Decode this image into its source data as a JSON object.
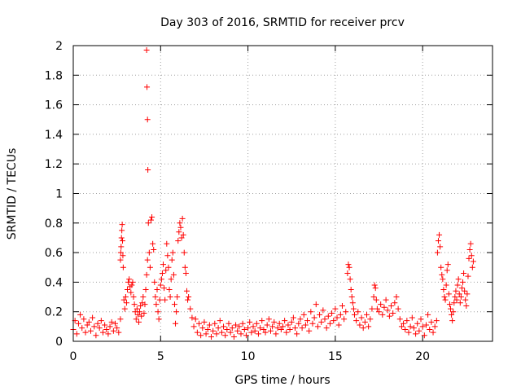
{
  "chart_data": {
    "type": "scatter",
    "title": "Day 303 of 2016, SRMTID for receiver prcv",
    "xlabel": "GPS time / hours",
    "ylabel": "SRMTID / TECUs",
    "xlim": [
      0,
      24
    ],
    "ylim": [
      0,
      2
    ],
    "x_ticks": [
      0,
      5,
      10,
      15,
      20
    ],
    "x_tick_labels": [
      "0",
      "5",
      "10",
      "15",
      "20"
    ],
    "y_ticks": [
      0,
      0.2,
      0.4,
      0.6,
      0.8,
      1,
      1.2,
      1.4,
      1.6,
      1.8,
      2
    ],
    "y_tick_labels": [
      "0",
      "0.2",
      "0.4",
      "0.6",
      "0.8",
      "1",
      "1.2",
      "1.4",
      "1.6",
      "1.8",
      "2"
    ],
    "grid": true,
    "marker": "+",
    "color": "#ff0000",
    "series": [
      {
        "name": "prcv",
        "points": [
          [
            0.0,
            0.08
          ],
          [
            0.1,
            0.14
          ],
          [
            0.2,
            0.05
          ],
          [
            0.3,
            0.12
          ],
          [
            0.4,
            0.18
          ],
          [
            0.5,
            0.09
          ],
          [
            0.6,
            0.15
          ],
          [
            0.7,
            0.06
          ],
          [
            0.8,
            0.11
          ],
          [
            0.9,
            0.13
          ],
          [
            1.0,
            0.07
          ],
          [
            1.1,
            0.16
          ],
          [
            1.2,
            0.1
          ],
          [
            1.3,
            0.04
          ],
          [
            1.4,
            0.12
          ],
          [
            1.5,
            0.09
          ],
          [
            1.6,
            0.14
          ],
          [
            1.7,
            0.06
          ],
          [
            1.8,
            0.11
          ],
          [
            1.9,
            0.08
          ],
          [
            2.0,
            0.05
          ],
          [
            2.1,
            0.1
          ],
          [
            2.2,
            0.13
          ],
          [
            2.3,
            0.07
          ],
          [
            2.4,
            0.12
          ],
          [
            2.5,
            0.09
          ],
          [
            2.6,
            0.06
          ],
          [
            2.7,
            0.15
          ],
          [
            2.7,
            0.55
          ],
          [
            2.72,
            0.6
          ],
          [
            2.74,
            0.64
          ],
          [
            2.76,
            0.7
          ],
          [
            2.78,
            0.75
          ],
          [
            2.8,
            0.79
          ],
          [
            2.82,
            0.68
          ],
          [
            2.84,
            0.58
          ],
          [
            2.86,
            0.5
          ],
          [
            2.9,
            0.28
          ],
          [
            2.95,
            0.22
          ],
          [
            3.0,
            0.3
          ],
          [
            3.05,
            0.26
          ],
          [
            3.1,
            0.35
          ],
          [
            3.15,
            0.4
          ],
          [
            3.2,
            0.42
          ],
          [
            3.25,
            0.37
          ],
          [
            3.3,
            0.33
          ],
          [
            3.35,
            0.38
          ],
          [
            3.4,
            0.4
          ],
          [
            3.45,
            0.3
          ],
          [
            3.5,
            0.25
          ],
          [
            3.55,
            0.2
          ],
          [
            3.6,
            0.15
          ],
          [
            3.65,
            0.22
          ],
          [
            3.7,
            0.18
          ],
          [
            3.75,
            0.13
          ],
          [
            3.8,
            0.2
          ],
          [
            3.85,
            0.24
          ],
          [
            3.9,
            0.17
          ],
          [
            3.95,
            0.26
          ],
          [
            4.0,
            0.3
          ],
          [
            4.05,
            0.19
          ],
          [
            4.1,
            0.25
          ],
          [
            4.2,
            1.97
          ],
          [
            4.22,
            1.72
          ],
          [
            4.25,
            1.5
          ],
          [
            4.27,
            1.16
          ],
          [
            4.15,
            0.35
          ],
          [
            4.2,
            0.45
          ],
          [
            4.25,
            0.55
          ],
          [
            4.3,
            0.8
          ],
          [
            4.35,
            0.6
          ],
          [
            4.4,
            0.5
          ],
          [
            4.45,
            0.82
          ],
          [
            4.5,
            0.84
          ],
          [
            4.55,
            0.66
          ],
          [
            4.6,
            0.62
          ],
          [
            4.65,
            0.4
          ],
          [
            4.7,
            0.3
          ],
          [
            4.75,
            0.25
          ],
          [
            4.8,
            0.35
          ],
          [
            4.85,
            0.2
          ],
          [
            4.9,
            0.15
          ],
          [
            4.95,
            0.28
          ],
          [
            5.0,
            0.38
          ],
          [
            5.05,
            0.42
          ],
          [
            5.1,
            0.46
          ],
          [
            5.15,
            0.52
          ],
          [
            5.2,
            0.36
          ],
          [
            5.25,
            0.28
          ],
          [
            5.3,
            0.48
          ],
          [
            5.35,
            0.66
          ],
          [
            5.4,
            0.58
          ],
          [
            5.45,
            0.5
          ],
          [
            5.5,
            0.35
          ],
          [
            5.55,
            0.3
          ],
          [
            5.6,
            0.42
          ],
          [
            5.65,
            0.55
          ],
          [
            5.7,
            0.6
          ],
          [
            5.75,
            0.45
          ],
          [
            5.8,
            0.25
          ],
          [
            5.85,
            0.12
          ],
          [
            5.9,
            0.2
          ],
          [
            5.95,
            0.3
          ],
          [
            6.0,
            0.68
          ],
          [
            6.05,
            0.74
          ],
          [
            6.1,
            0.8
          ],
          [
            6.15,
            0.77
          ],
          [
            6.2,
            0.7
          ],
          [
            6.25,
            0.83
          ],
          [
            6.3,
            0.72
          ],
          [
            6.35,
            0.6
          ],
          [
            6.4,
            0.5
          ],
          [
            6.45,
            0.46
          ],
          [
            6.5,
            0.34
          ],
          [
            6.55,
            0.28
          ],
          [
            6.6,
            0.3
          ],
          [
            6.7,
            0.22
          ],
          [
            6.8,
            0.16
          ],
          [
            6.9,
            0.1
          ],
          [
            7.0,
            0.15
          ],
          [
            7.1,
            0.06
          ],
          [
            7.2,
            0.12
          ],
          [
            7.3,
            0.04
          ],
          [
            7.4,
            0.09
          ],
          [
            7.5,
            0.13
          ],
          [
            7.6,
            0.05
          ],
          [
            7.7,
            0.08
          ],
          [
            7.8,
            0.11
          ],
          [
            7.9,
            0.03
          ],
          [
            8.0,
            0.07
          ],
          [
            8.1,
            0.12
          ],
          [
            8.2,
            0.05
          ],
          [
            8.3,
            0.09
          ],
          [
            8.4,
            0.14
          ],
          [
            8.5,
            0.06
          ],
          [
            8.6,
            0.1
          ],
          [
            8.7,
            0.04
          ],
          [
            8.8,
            0.08
          ],
          [
            8.9,
            0.12
          ],
          [
            9.0,
            0.06
          ],
          [
            9.1,
            0.09
          ],
          [
            9.2,
            0.03
          ],
          [
            9.3,
            0.11
          ],
          [
            9.4,
            0.07
          ],
          [
            9.5,
            0.1
          ],
          [
            9.6,
            0.05
          ],
          [
            9.7,
            0.12
          ],
          [
            9.8,
            0.08
          ],
          [
            9.9,
            0.04
          ],
          [
            10.0,
            0.09
          ],
          [
            10.1,
            0.13
          ],
          [
            10.2,
            0.06
          ],
          [
            10.3,
            0.1
          ],
          [
            10.4,
            0.07
          ],
          [
            10.5,
            0.12
          ],
          [
            10.6,
            0.05
          ],
          [
            10.7,
            0.09
          ],
          [
            10.8,
            0.14
          ],
          [
            10.9,
            0.08
          ],
          [
            11.0,
            0.06
          ],
          [
            11.1,
            0.11
          ],
          [
            11.2,
            0.15
          ],
          [
            11.3,
            0.07
          ],
          [
            11.4,
            0.1
          ],
          [
            11.5,
            0.13
          ],
          [
            11.6,
            0.05
          ],
          [
            11.7,
            0.09
          ],
          [
            11.8,
            0.12
          ],
          [
            11.9,
            0.08
          ],
          [
            12.0,
            0.1
          ],
          [
            12.1,
            0.14
          ],
          [
            12.2,
            0.06
          ],
          [
            12.3,
            0.11
          ],
          [
            12.4,
            0.08
          ],
          [
            12.5,
            0.13
          ],
          [
            12.6,
            0.16
          ],
          [
            12.7,
            0.09
          ],
          [
            12.8,
            0.05
          ],
          [
            12.9,
            0.12
          ],
          [
            13.0,
            0.15
          ],
          [
            13.1,
            0.09
          ],
          [
            13.2,
            0.18
          ],
          [
            13.3,
            0.11
          ],
          [
            13.4,
            0.14
          ],
          [
            13.5,
            0.07
          ],
          [
            13.6,
            0.2
          ],
          [
            13.7,
            0.12
          ],
          [
            13.8,
            0.16
          ],
          [
            13.9,
            0.25
          ],
          [
            14.0,
            0.1
          ],
          [
            14.1,
            0.18
          ],
          [
            14.2,
            0.13
          ],
          [
            14.3,
            0.21
          ],
          [
            14.4,
            0.15
          ],
          [
            14.5,
            0.09
          ],
          [
            14.6,
            0.17
          ],
          [
            14.7,
            0.12
          ],
          [
            14.8,
            0.19
          ],
          [
            14.9,
            0.14
          ],
          [
            15.0,
            0.22
          ],
          [
            15.1,
            0.16
          ],
          [
            15.2,
            0.11
          ],
          [
            15.3,
            0.18
          ],
          [
            15.4,
            0.24
          ],
          [
            15.5,
            0.15
          ],
          [
            15.6,
            0.2
          ],
          [
            15.7,
            0.46
          ],
          [
            15.75,
            0.52
          ],
          [
            15.8,
            0.5
          ],
          [
            15.85,
            0.42
          ],
          [
            15.9,
            0.35
          ],
          [
            15.95,
            0.3
          ],
          [
            16.0,
            0.26
          ],
          [
            16.05,
            0.22
          ],
          [
            16.1,
            0.18
          ],
          [
            16.2,
            0.14
          ],
          [
            16.3,
            0.2
          ],
          [
            16.4,
            0.11
          ],
          [
            16.5,
            0.16
          ],
          [
            16.6,
            0.09
          ],
          [
            16.7,
            0.13
          ],
          [
            16.8,
            0.18
          ],
          [
            16.9,
            0.1
          ],
          [
            17.0,
            0.15
          ],
          [
            17.1,
            0.22
          ],
          [
            17.2,
            0.3
          ],
          [
            17.25,
            0.38
          ],
          [
            17.3,
            0.36
          ],
          [
            17.35,
            0.28
          ],
          [
            17.4,
            0.22
          ],
          [
            17.5,
            0.2
          ],
          [
            17.6,
            0.25
          ],
          [
            17.7,
            0.18
          ],
          [
            17.8,
            0.23
          ],
          [
            17.9,
            0.28
          ],
          [
            18.0,
            0.21
          ],
          [
            18.1,
            0.17
          ],
          [
            18.2,
            0.24
          ],
          [
            18.3,
            0.19
          ],
          [
            18.4,
            0.26
          ],
          [
            18.5,
            0.3
          ],
          [
            18.6,
            0.22
          ],
          [
            18.7,
            0.15
          ],
          [
            18.8,
            0.1
          ],
          [
            18.9,
            0.12
          ],
          [
            19.0,
            0.08
          ],
          [
            19.1,
            0.14
          ],
          [
            19.2,
            0.06
          ],
          [
            19.3,
            0.1
          ],
          [
            19.4,
            0.16
          ],
          [
            19.5,
            0.09
          ],
          [
            19.6,
            0.05
          ],
          [
            19.7,
            0.12
          ],
          [
            19.8,
            0.07
          ],
          [
            19.9,
            0.15
          ],
          [
            20.0,
            0.1
          ],
          [
            20.1,
            0.04
          ],
          [
            20.2,
            0.11
          ],
          [
            20.3,
            0.18
          ],
          [
            20.4,
            0.08
          ],
          [
            20.5,
            0.13
          ],
          [
            20.6,
            0.06
          ],
          [
            20.7,
            0.1
          ],
          [
            20.8,
            0.14
          ],
          [
            20.85,
            0.6
          ],
          [
            20.9,
            0.68
          ],
          [
            20.95,
            0.72
          ],
          [
            21.0,
            0.64
          ],
          [
            21.05,
            0.5
          ],
          [
            21.1,
            0.45
          ],
          [
            21.15,
            0.42
          ],
          [
            21.2,
            0.35
          ],
          [
            21.25,
            0.3
          ],
          [
            21.3,
            0.28
          ],
          [
            21.35,
            0.38
          ],
          [
            21.4,
            0.48
          ],
          [
            21.45,
            0.52
          ],
          [
            21.5,
            0.32
          ],
          [
            21.55,
            0.25
          ],
          [
            21.6,
            0.22
          ],
          [
            21.65,
            0.18
          ],
          [
            21.7,
            0.14
          ],
          [
            21.75,
            0.2
          ],
          [
            21.8,
            0.26
          ],
          [
            21.85,
            0.3
          ],
          [
            21.9,
            0.34
          ],
          [
            21.95,
            0.28
          ],
          [
            22.0,
            0.38
          ],
          [
            22.05,
            0.42
          ],
          [
            22.1,
            0.32
          ],
          [
            22.15,
            0.26
          ],
          [
            22.2,
            0.3
          ],
          [
            22.25,
            0.36
          ],
          [
            22.3,
            0.4
          ],
          [
            22.35,
            0.46
          ],
          [
            22.4,
            0.34
          ],
          [
            22.45,
            0.28
          ],
          [
            22.5,
            0.24
          ],
          [
            22.55,
            0.32
          ],
          [
            22.6,
            0.44
          ],
          [
            22.65,
            0.56
          ],
          [
            22.7,
            0.62
          ],
          [
            22.75,
            0.66
          ],
          [
            22.8,
            0.58
          ],
          [
            22.85,
            0.5
          ],
          [
            22.9,
            0.54
          ]
        ]
      }
    ]
  }
}
